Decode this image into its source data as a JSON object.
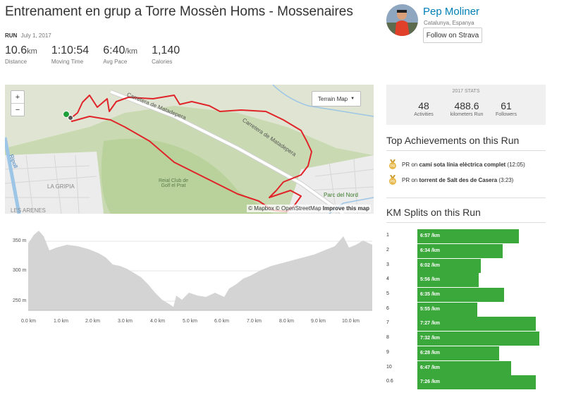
{
  "activity": {
    "title": "Entrenament en grup a Torre Mossèn Homs - Mossenaires",
    "type_label": "RUN",
    "date": "July 1, 2017",
    "stats": [
      {
        "value": "10.6",
        "unit": "km",
        "label": "Distance"
      },
      {
        "value": "1:10:54",
        "unit": "",
        "label": "Moving Time"
      },
      {
        "value": "6:40",
        "unit": "/km",
        "label": "Avg Pace"
      },
      {
        "value": "1,140",
        "unit": "",
        "label": "Calories"
      }
    ]
  },
  "athlete": {
    "name": "Pep Moliner",
    "location": "Catalunya, Espanya",
    "follow_label": "Follow on Strava"
  },
  "map": {
    "zoom_in": "+",
    "zoom_out": "−",
    "type_label": "Terrain Map",
    "attribution": {
      "mapbox": "© Mapbox",
      "osm": "© OpenStreetMap",
      "improve": "Improve this map"
    },
    "labels": {
      "road1": "Carretera de Matadepera",
      "road2": "Carretera de Matadepera",
      "park": "Parc del Nord",
      "club": "Reial Club de Golf el Prat",
      "zona1": "LA GRIPIA",
      "zona2": "LES ARENES",
      "river": "Ripoll"
    },
    "route_color": "#e0242a"
  },
  "elevation": {
    "y_labels": [
      "350 m",
      "300 m",
      "250 m"
    ],
    "x_labels": [
      "0.0 km",
      "1.0 km",
      "2.0 km",
      "3.0 km",
      "4.0 km",
      "5.0 km",
      "6.0 km",
      "7.0 km",
      "8.0 km",
      "9.0 km",
      "10.0 km"
    ]
  },
  "year_stats": {
    "title": "2017 STATS",
    "items": [
      {
        "value": "48",
        "label": "Activities"
      },
      {
        "value": "488.6",
        "label": "kilometers Run"
      },
      {
        "value": "61",
        "label": "Followers"
      }
    ]
  },
  "achievements": {
    "heading": "Top Achievements on this Run",
    "items": [
      {
        "prefix": "PR on",
        "name": "camí sota línia elèctrica complet",
        "time": "(12:05)"
      },
      {
        "prefix": "PR on",
        "name": "torrent de Salt des de Casera",
        "time": "(3:23)"
      }
    ],
    "medal_color": "#e8b84a"
  },
  "splits": {
    "heading": "KM Splits on this Run",
    "bar_color": "#3ba83b",
    "items": [
      {
        "km": "1",
        "pace": "6:57 /km",
        "fill": 0.83
      },
      {
        "km": "2",
        "pace": "6:34 /km",
        "fill": 0.7
      },
      {
        "km": "3",
        "pace": "6:02 /km",
        "fill": 0.52
      },
      {
        "km": "4",
        "pace": "5:56 /km",
        "fill": 0.5
      },
      {
        "km": "5",
        "pace": "6:35 /km",
        "fill": 0.71
      },
      {
        "km": "6",
        "pace": "5:55 /km",
        "fill": 0.49
      },
      {
        "km": "7",
        "pace": "7:27 /km",
        "fill": 0.97
      },
      {
        "km": "8",
        "pace": "7:32 /km",
        "fill": 1.0
      },
      {
        "km": "9",
        "pace": "6:28 /km",
        "fill": 0.67
      },
      {
        "km": "10",
        "pace": "6:47 /km",
        "fill": 0.77
      },
      {
        "km": "0.6",
        "pace": "7:26 /km",
        "fill": 0.97
      }
    ]
  }
}
